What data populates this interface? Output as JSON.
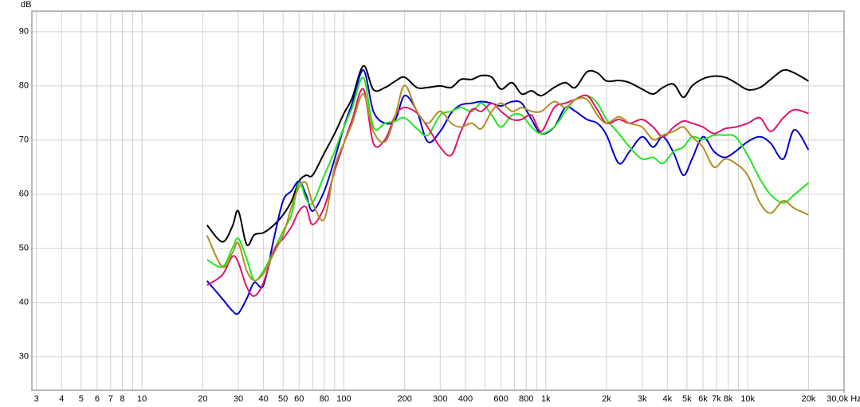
{
  "chart_data": {
    "type": "line",
    "y_label": "dB",
    "xscale": "log",
    "grid": true,
    "xlim": [
      2.85,
      30000
    ],
    "ylim": [
      23.8,
      93.8
    ],
    "yticks": [
      30,
      40,
      50,
      60,
      70,
      80,
      90
    ],
    "xticks": [
      3,
      4,
      5,
      6,
      7,
      8,
      10,
      20,
      30,
      40,
      50,
      60,
      80,
      100,
      200,
      300,
      400,
      600,
      800,
      {
        "value": 1000,
        "label": "1k"
      },
      {
        "value": 2000,
        "label": "2k"
      },
      {
        "value": 3000,
        "label": "3k"
      },
      {
        "value": 4000,
        "label": "4k"
      },
      {
        "value": 5000,
        "label": "5k"
      },
      {
        "value": 6000,
        "label": "6k"
      },
      {
        "value": 7000,
        "label": "7k"
      },
      {
        "value": 8000,
        "label": "8k"
      },
      {
        "value": 10000,
        "label": "10k"
      },
      {
        "value": 20000,
        "label": "20k"
      },
      {
        "value": 30000,
        "label": "30,0k Hz"
      }
    ],
    "xminor": [
      9,
      70,
      90,
      500,
      700,
      900,
      9000
    ],
    "x": [
      21,
      25,
      28,
      30,
      33,
      36,
      40,
      45,
      50,
      55,
      60,
      65,
      70,
      80,
      90,
      100,
      110,
      125,
      140,
      160,
      180,
      200,
      230,
      260,
      300,
      340,
      380,
      430,
      480,
      540,
      600,
      680,
      760,
      850,
      950,
      1100,
      1250,
      1400,
      1600,
      1800,
      2000,
      2300,
      2600,
      3000,
      3400,
      3800,
      4300,
      4800,
      5300,
      6000,
      6800,
      7700,
      8700,
      10000,
      11500,
      13000,
      15000,
      17000,
      20000
    ],
    "series": [
      {
        "color": "#000000",
        "values": [
          54.3,
          51.2,
          54,
          56.9,
          50.7,
          52.5,
          52.9,
          54.3,
          56.2,
          58.7,
          62.4,
          63.5,
          63.5,
          67.6,
          71.2,
          74.9,
          77.8,
          83.7,
          79.3,
          79.7,
          80.9,
          81.6,
          79.7,
          79.7,
          80,
          79.7,
          81.2,
          81.2,
          81.9,
          81.6,
          79.4,
          80.6,
          78.5,
          79.1,
          78.2,
          79.7,
          80.6,
          79.7,
          82.6,
          82.4,
          80.9,
          81,
          80.6,
          79.4,
          78.5,
          79.7,
          80.3,
          77.9,
          80,
          81.3,
          81.8,
          81.6,
          80.6,
          79.3,
          79.7,
          81.2,
          82.9,
          82.4,
          80.9
        ]
      },
      {
        "color": "#0000cc",
        "values": [
          44,
          40.7,
          38.5,
          38,
          40.7,
          43.7,
          43.2,
          51.8,
          58.8,
          60.6,
          62.4,
          59.9,
          56.9,
          60.6,
          66.5,
          72.4,
          76.8,
          82.9,
          75.3,
          73.1,
          73.8,
          78.2,
          75.3,
          69.7,
          71.6,
          75,
          76.5,
          76.8,
          77.1,
          76.8,
          76.3,
          77.1,
          76.8,
          73.8,
          71.2,
          72.4,
          76,
          75.3,
          73.8,
          73.1,
          70.9,
          65.7,
          67.9,
          70.6,
          68.7,
          70.6,
          67.6,
          63.5,
          66.5,
          70.6,
          67.9,
          66.8,
          67.9,
          69.7,
          70.6,
          69.4,
          66.5,
          71.9,
          68.2
        ]
      },
      {
        "color": "#22e622",
        "values": [
          47.9,
          46.6,
          50,
          51.8,
          48.1,
          44.1,
          45.9,
          49.6,
          53.2,
          56.2,
          62.1,
          59.1,
          58.4,
          63.5,
          67.9,
          72.4,
          76,
          81.5,
          72.4,
          73.1,
          73.5,
          74.1,
          72.1,
          70.9,
          74.6,
          75.3,
          76,
          75.3,
          76.8,
          74.6,
          72.4,
          74.6,
          74.6,
          72.4,
          71.2,
          72.4,
          75.3,
          77.5,
          78.2,
          76.8,
          73.8,
          71.2,
          68.7,
          66.5,
          66.8,
          65.7,
          67.9,
          68.7,
          70.6,
          70.1,
          70.9,
          70.9,
          70.6,
          67.2,
          62.8,
          59.9,
          58.4,
          59.9,
          62.1
        ]
      },
      {
        "color": "#e0146e",
        "values": [
          43.2,
          45.1,
          48.5,
          47.4,
          42.9,
          41.2,
          43.7,
          49.6,
          51.8,
          54,
          56.9,
          57.6,
          54.4,
          57.6,
          64.3,
          69.4,
          73.8,
          79.4,
          69.4,
          70.1,
          74.6,
          76,
          75,
          72.4,
          68.7,
          67.2,
          71.6,
          75.6,
          75.3,
          76.8,
          75.3,
          73.8,
          73.8,
          74.6,
          71.6,
          76,
          76.8,
          77.5,
          78.2,
          75.6,
          73.1,
          73.8,
          73.1,
          73.8,
          72.4,
          70.6,
          72.4,
          73.5,
          73.1,
          72.4,
          71.2,
          72.1,
          72.4,
          73.1,
          74.1,
          71.6,
          74.1,
          75.6,
          74.9
        ]
      },
      {
        "color": "#b09020",
        "values": [
          52.4,
          46.6,
          49.1,
          51,
          45.9,
          44.1,
          45.4,
          49.1,
          52.5,
          57.6,
          61.3,
          62.1,
          58.4,
          55.4,
          65,
          69.4,
          73.1,
          78.5,
          71.6,
          69.7,
          74.6,
          80.1,
          75.3,
          73.1,
          75.3,
          73.1,
          72.4,
          73.1,
          72.1,
          75.3,
          76.8,
          75.3,
          76,
          75.3,
          75.3,
          77.1,
          76,
          77.5,
          77.5,
          74.6,
          73.1,
          74.3,
          73.1,
          72.4,
          70.1,
          70.9,
          71.6,
          72.4,
          70.6,
          68.7,
          65,
          66.5,
          65.7,
          63.5,
          58.4,
          56.5,
          58.8,
          57.4,
          56.2
        ]
      }
    ]
  }
}
